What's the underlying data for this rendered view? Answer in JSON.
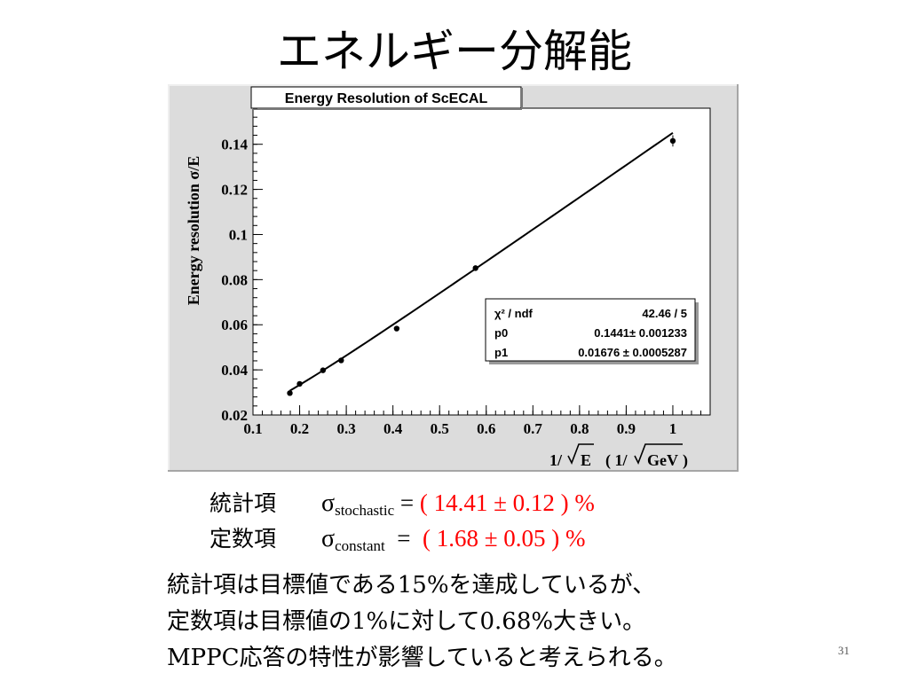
{
  "slide": {
    "title": "エネルギー分解能",
    "page_number": "31"
  },
  "results": [
    {
      "label": "統計項",
      "symbol": "σ",
      "subscript": "stochastic",
      "eq": " = ",
      "value": "( 14.41 ± 0.12 ) %"
    },
    {
      "label": "定数項",
      "symbol": "σ",
      "subscript": "constant",
      "eq": "  =  ",
      "value": "( 1.68 ± 0.05 ) %"
    }
  ],
  "summary_lines": [
    "統計項は目標値である15%を達成しているが、",
    "定数項は目標値の1%に対して0.68%大きい。",
    "MPPC応答の特性が影響していると考えられる。"
  ],
  "chart_data": {
    "type": "scatter",
    "title": "Energy Resolution of ScECAL",
    "xlabel_prefix": "1/",
    "xlabel_rad": "E",
    "xlabel_unit_prefix": "( 1/",
    "xlabel_unit_rad": "GeV",
    "xlabel_unit_suffix": " )",
    "ylabel": "Energy resolution  σ/E",
    "xlim": [
      0.1,
      1.08
    ],
    "ylim": [
      0.02,
      0.156
    ],
    "xticks": [
      0.1,
      0.2,
      0.3,
      0.4,
      0.5,
      0.6,
      0.7,
      0.8,
      0.9,
      1
    ],
    "xtick_labels": [
      "0.1",
      "0.2",
      "0.3",
      "0.4",
      "0.5",
      "0.6",
      "0.7",
      "0.8",
      "0.9",
      "1"
    ],
    "yticks": [
      0.02,
      0.04,
      0.06,
      0.08,
      0.1,
      0.12,
      0.14
    ],
    "ytick_labels": [
      "0.02",
      "0.04",
      "0.06",
      "0.08",
      "0.1",
      "0.12",
      "0.14"
    ],
    "x": [
      0.179,
      0.2,
      0.25,
      0.289,
      0.408,
      0.577,
      1.0
    ],
    "y": [
      0.0297,
      0.0338,
      0.0398,
      0.0442,
      0.0583,
      0.0851,
      0.1415
    ],
    "yerr": [
      0.0003,
      0.0003,
      0.0003,
      0.0004,
      0.0005,
      0.0008,
      0.0025
    ],
    "fit": {
      "x_range": [
        0.179,
        1.0
      ]
    },
    "stats": [
      {
        "name": "χ² / ndf",
        "value": "42.46 / 5"
      },
      {
        "name": "p0",
        "value": "0.1441± 0.001233"
      },
      {
        "name": "p1",
        "value": "0.01676 ± 0.0005287"
      }
    ],
    "fit_params": {
      "p0": 0.1441,
      "p1": 0.01676
    },
    "grid": false,
    "legend": "stats-box right"
  }
}
